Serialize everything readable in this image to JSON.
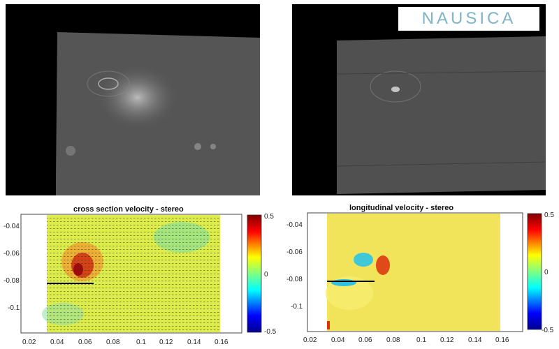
{
  "logo": {
    "text": "NAUSICA"
  },
  "plots": [
    {
      "title": "cross section velocity - stereo",
      "y_ticks": [
        "-0.04",
        "-0.06",
        "-0.08",
        "-0.1"
      ],
      "x_ticks": [
        "0.02",
        "0.04",
        "0.06",
        "0.08",
        "0.1",
        "0.12",
        "0.14",
        "0.16"
      ],
      "colorbar_ticks": [
        "0.5",
        "0",
        "-0.5"
      ],
      "colors": {
        "background": "#d7f04a",
        "hot": "#b01010",
        "cool": "#3fd0c8"
      }
    },
    {
      "title": "longitudinal velocity - stereo",
      "y_ticks": [
        "-0.04",
        "-0.06",
        "-0.08",
        "-0.1"
      ],
      "x_ticks": [
        "0.02",
        "0.04",
        "0.06",
        "0.08",
        "0.1",
        "0.12",
        "0.14",
        "0.16"
      ],
      "colorbar_ticks": [
        "0.5",
        "0",
        "-0.5"
      ],
      "colors": {
        "background": "#f2e85a",
        "hot": "#d03010",
        "cool": "#30b8e0"
      }
    }
  ]
}
